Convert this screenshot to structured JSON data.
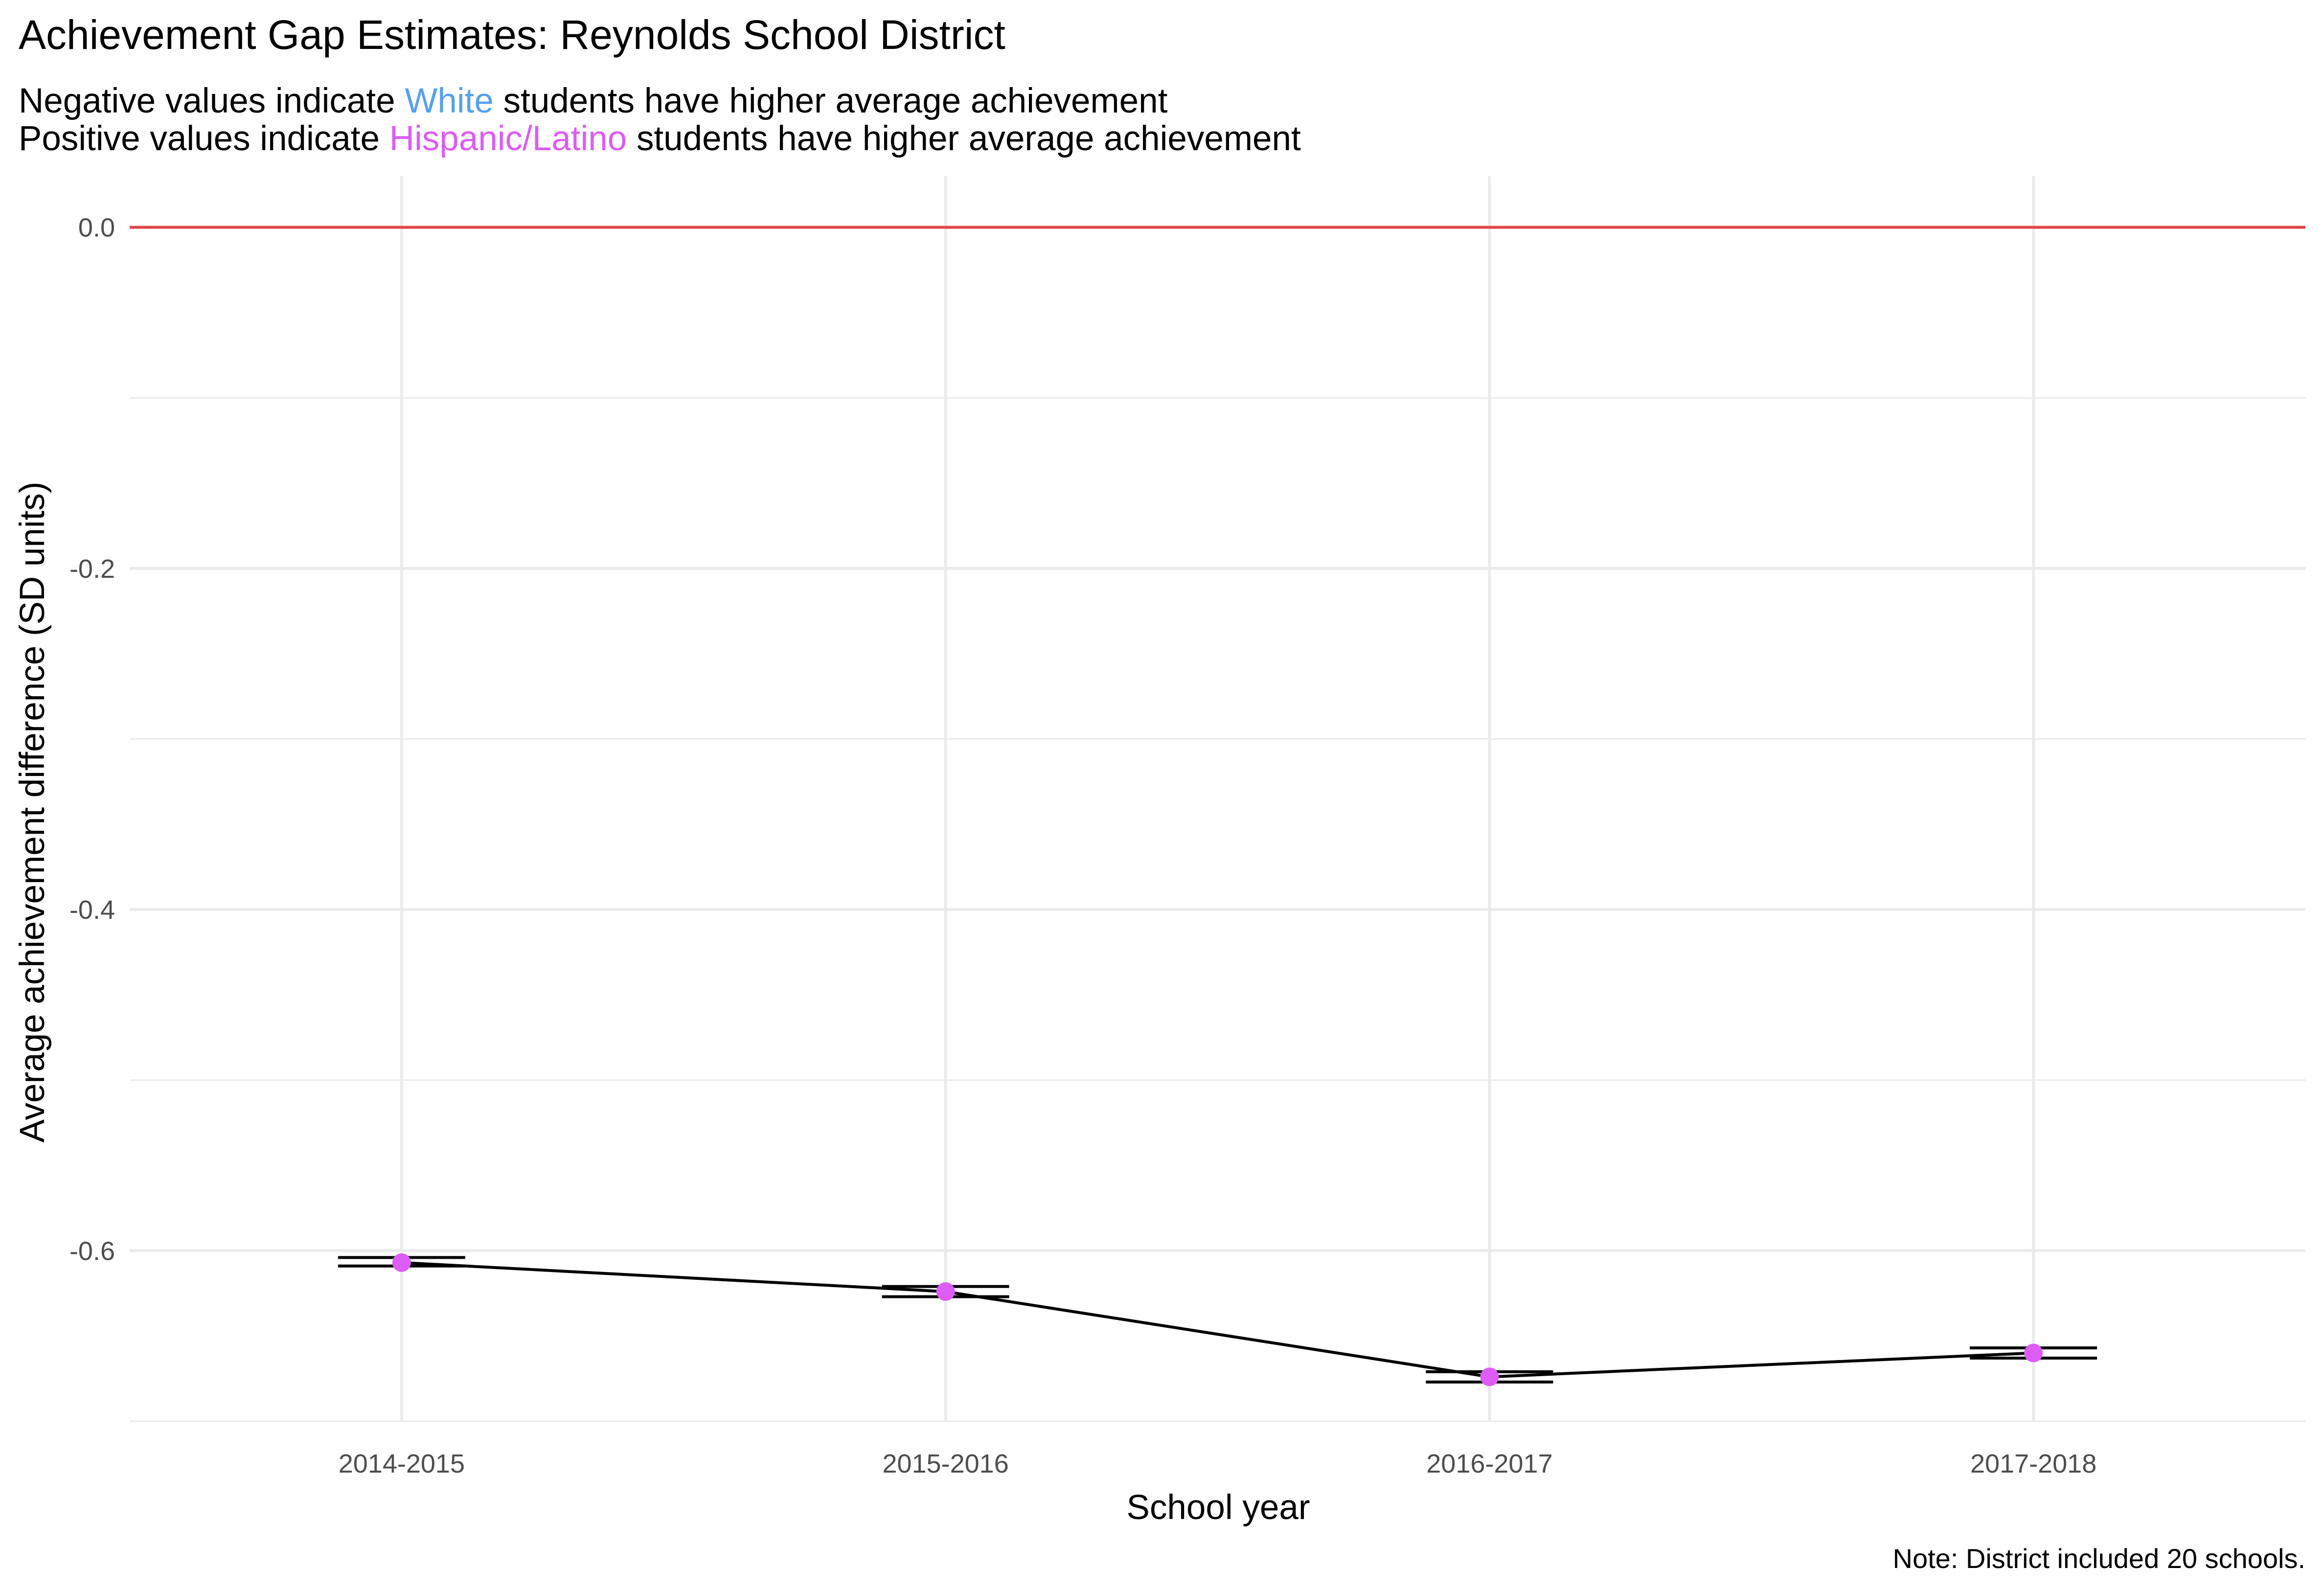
{
  "chart_data": {
    "type": "line",
    "title": "Achievement Gap Estimates: Reynolds School District",
    "subtitle": {
      "line1": {
        "before": "Negative values indicate",
        "highlight": "White",
        "after": "students have higher average achievement",
        "highlight_color": "#56a0f0"
      },
      "line2": {
        "before": "Positive values indicate",
        "highlight": "Hispanic/Latino",
        "after": "students have higher average achievement",
        "highlight_color": "#dc5cf5"
      }
    },
    "xlabel": "School year",
    "ylabel": "Average achievement difference (SD units)",
    "caption": "Note: District included 20 schools.",
    "categories": [
      "2014-2015",
      "2015-2016",
      "2016-2017",
      "2017-2018"
    ],
    "ylim": [
      -0.7,
      0.03
    ],
    "yticks": [
      0.0,
      -0.2,
      -0.4,
      -0.6
    ],
    "ytick_labels": [
      "0.0",
      "-0.2",
      "-0.4",
      "-0.6"
    ],
    "series": [
      {
        "values": [
          -0.607,
          -0.624,
          -0.674,
          -0.66
        ],
        "lower": [
          -0.609,
          -0.627,
          -0.677,
          -0.663
        ],
        "upper": [
          -0.604,
          -0.621,
          -0.671,
          -0.657
        ]
      }
    ],
    "reference_line": {
      "y": 0.0,
      "color": "#e0474c"
    },
    "colors": {
      "line": "#000000",
      "point": "#dc5cf5",
      "grid": "#ebebeb"
    },
    "grid": true,
    "legend": "none"
  }
}
